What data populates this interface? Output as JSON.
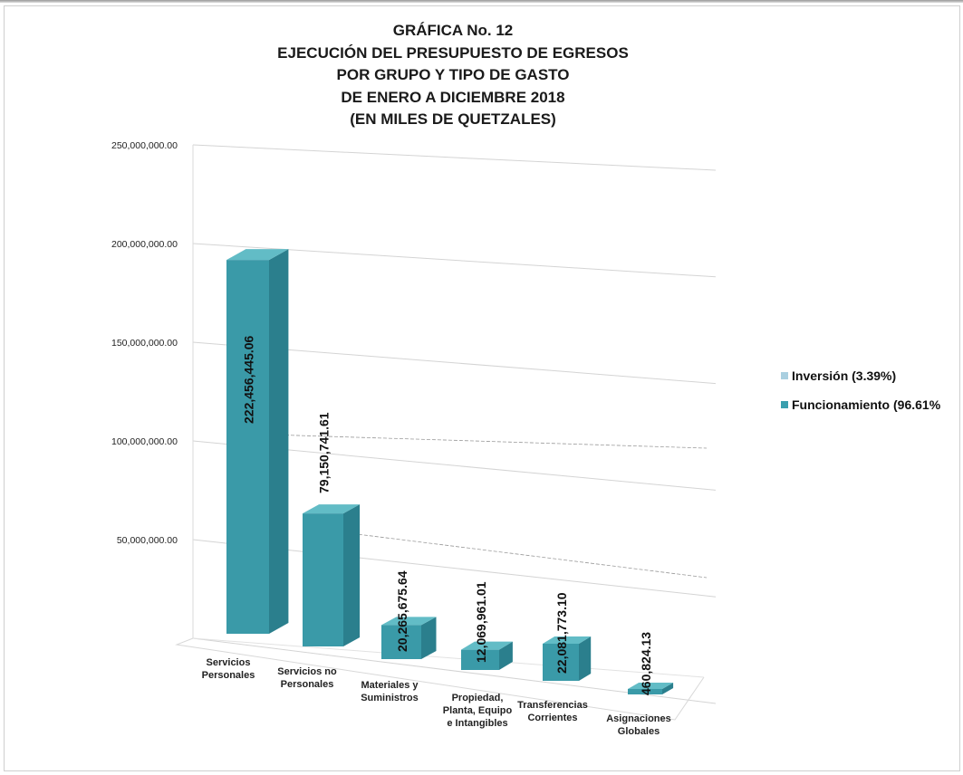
{
  "chart_data": {
    "type": "bar",
    "title_lines": [
      "GRÁFICA No. 12",
      "EJECUCIÓN DEL PRESUPUESTO DE EGRESOS",
      "POR GRUPO Y TIPO DE GASTO",
      "DE ENERO A DICIEMBRE 2018",
      "(EN MILES DE QUETZALES)"
    ],
    "categories": [
      [
        "Servicios",
        "Personales"
      ],
      [
        "Servicios no",
        "Personales"
      ],
      [
        "Materiales y",
        "Suministros"
      ],
      [
        "Propiedad,",
        "Planta, Equipo",
        "e Intangibles"
      ],
      [
        "Transferencias",
        "Corrientes"
      ],
      [
        "Asignaciones",
        "Globales"
      ]
    ],
    "series": [
      {
        "name": "Funcionamiento (96.61%",
        "values": [
          222456445.06,
          79150741.61,
          20265675.64,
          12069961.01,
          22081773.1,
          460824.13
        ],
        "labels": [
          "222,456,445.06",
          "79,150,741.61",
          "20,265,675.64",
          "12,069,961.01",
          "22,081,773.10",
          "460,824.13"
        ]
      }
    ],
    "ytick_labels": [
      "",
      "50,000,000.00",
      "100,000,000.00",
      "150,000,000.00",
      "200,000,000.00",
      "250,000,000.00"
    ],
    "ylim": [
      0,
      250000000
    ],
    "yticks": [
      0,
      50000000,
      100000000,
      150000000,
      200000000,
      250000000
    ],
    "grid": true,
    "view": "3d-perspective",
    "legend_position": "right",
    "legend": [
      {
        "label": "Inversión (3.39%)",
        "color": "#a9cfe0"
      },
      {
        "label": "Funcionamiento (96.61%",
        "color": "#3a9fae"
      }
    ],
    "colors": {
      "bar": "#3a9fae",
      "bar_front": "#3a9aa8",
      "bar_side": "#2b7f8d",
      "bar_top": "#62bcc6"
    }
  }
}
